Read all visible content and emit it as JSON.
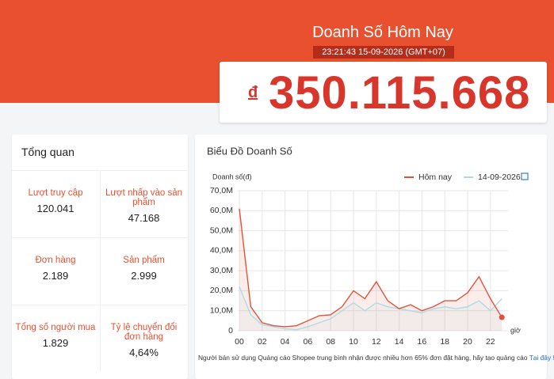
{
  "header": {
    "title": "Doanh Số Hôm Nay",
    "timestamp": "23:21:43 15-09-2026 (GMT+07)",
    "currency": "đ",
    "amount": "350.115.668"
  },
  "overview": {
    "title": "Tổng quan",
    "items": [
      {
        "label": "Lượt truy cập",
        "value": "120.041"
      },
      {
        "label": "Lượt nhấp vào sản phẩm",
        "value": "47.168"
      },
      {
        "label": "Đơn hàng",
        "value": "2.189"
      },
      {
        "label": "Sản phẩm",
        "value": "2.999"
      },
      {
        "label": "Tổng số người mua",
        "value": "1.829"
      },
      {
        "label": "Tỷ lệ chuyển đổi đơn hàng",
        "value": "4,64%"
      }
    ]
  },
  "chart_data": {
    "type": "line",
    "title": "Biểu Đồ Doanh Số",
    "y_label": "Doanh số(đ)",
    "x_label": "giờ",
    "categories": [
      "00",
      null,
      "02",
      null,
      "04",
      null,
      "06",
      null,
      "08",
      null,
      "10",
      null,
      "12",
      null,
      "14",
      null,
      "16",
      null,
      "18",
      null,
      "20",
      null,
      "22",
      null
    ],
    "series": [
      {
        "name": "Hôm nay",
        "color": "#e0533a",
        "values": [
          61,
          12,
          4,
          2.5,
          2,
          2.5,
          5,
          7.5,
          8,
          12,
          20,
          16,
          24.5,
          15,
          11,
          13,
          10,
          12,
          15,
          15,
          19,
          27,
          16,
          6.7
        ]
      },
      {
        "name": "14-09-2026",
        "color": "#a9dde6",
        "values": [
          22,
          8,
          3,
          2,
          1,
          0.5,
          2,
          4,
          6,
          10,
          14,
          10,
          14,
          12,
          11,
          10,
          9,
          11,
          12,
          11,
          12,
          15,
          10,
          16
        ]
      }
    ],
    "ylim": [
      0,
      70
    ],
    "yticks": [
      0,
      {
        "value": 10,
        "label": "10,0M"
      },
      {
        "value": 20,
        "label": "20,0M"
      },
      {
        "value": 30,
        "label": "30,0M"
      },
      {
        "value": 40,
        "label": "40,0M"
      },
      {
        "value": 50,
        "label": "50,0M"
      },
      {
        "value": 60,
        "label": "60,0M"
      },
      {
        "value": 70,
        "label": "70,0M"
      }
    ],
    "grid": true,
    "note": "Người bán sử dụng Quảng cáo Shopee trung bình nhận được nhiều hơn 65% đơn đặt hàng, hãy tạo quảng cáo",
    "link": "Tại đây !"
  }
}
